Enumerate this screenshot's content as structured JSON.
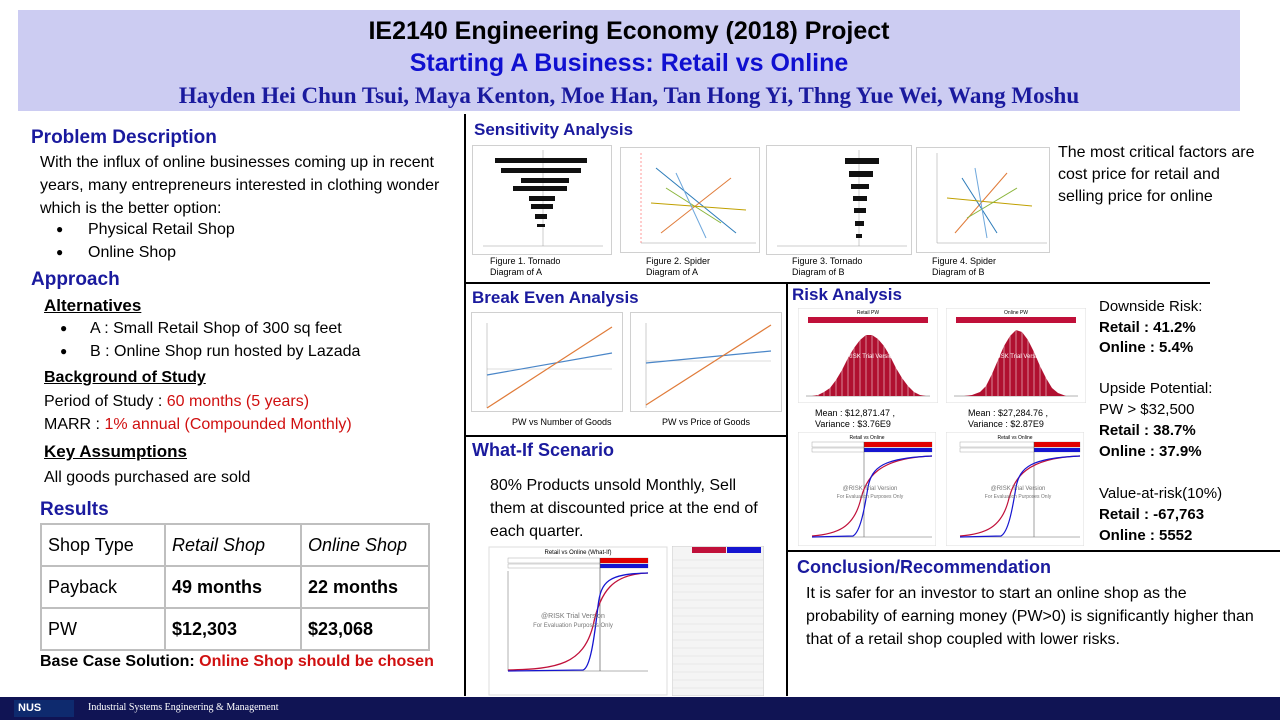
{
  "header": {
    "title": "IE2140 Engineering Economy (2018) Project",
    "subtitle": "Starting A Business: Retail vs Online",
    "authors": "Hayden Hei Chun Tsui, Maya Kenton, Moe Han, Tan Hong Yi, Thng Yue Wei, Wang Moshu"
  },
  "problem": {
    "heading": "Problem Description",
    "text": "With the influx of online businesses coming up in recent years, many entrepreneurs interested in clothing wonder which is the better option:",
    "options": [
      "Physical Retail Shop",
      "Online Shop"
    ]
  },
  "approach": {
    "heading": "Approach",
    "alternatives_heading": "Alternatives",
    "alternatives": [
      "A : Small Retail Shop of 300 sq feet",
      "B : Online Shop run hosted by Lazada"
    ],
    "background_heading": "Background of Study",
    "period_label": "Period of Study : ",
    "period_value": "60 months (5 years)",
    "marr_label": "MARR : ",
    "marr_value": "1% annual (Compounded Monthly)",
    "assumptions_heading": "Key Assumptions",
    "assumptions_text": "All goods purchased are sold"
  },
  "results": {
    "heading": "Results",
    "header_row": [
      "Shop Type",
      "Retail Shop",
      "Online Shop"
    ],
    "rows": [
      [
        "Payback",
        "49 months",
        "22 months"
      ],
      [
        "PW",
        "$12,303",
        "$23,068"
      ]
    ],
    "base_label": "Base Case Solution: ",
    "base_value": "Online Shop should be chosen"
  },
  "sensitivity": {
    "heading": "Sensitivity Analysis",
    "captions": [
      "Figure 1. Tornado Diagram of A",
      "Figure 2. Spider Diagram of A",
      "Figure 3. Tornado Diagram of B",
      "Figure 4. Spider Diagram of B"
    ],
    "note": "The most critical factors are cost price for retail and selling price for online"
  },
  "breakeven": {
    "heading": "Break Even Analysis",
    "captions": [
      "PW vs Number of Goods",
      "PW  vs Price of Goods"
    ]
  },
  "whatif": {
    "heading": "What-If Scenario",
    "text": "80% Products unsold Monthly, Sell them at discounted price at the end of each quarter.",
    "chart_title": "Retail vs Online (What-If)",
    "watermark_1": "@RISK Trial Version",
    "watermark_2": "For Evaluation Purposes Only"
  },
  "risk": {
    "heading": "Risk Analysis",
    "retail_chart_title": "Retail PW",
    "online_chart_title": "Online PW",
    "retail_stats_1": "Mean : $12,871.47  ,",
    "retail_stats_2": "Variance : $3.76E9",
    "online_stats_1": "Mean : $27,284.76  ,",
    "online_stats_2": "Variance : $2.87E9",
    "cdf_title": "Retail vs Online",
    "watermark_1": "@RISK Trial Version",
    "watermark_2": "For Evaluation Purposes Only",
    "downside_label": "Downside  Risk:",
    "downside_retail": "Retail  : 41.2%",
    "downside_online": "Online  : 5.4%",
    "upside_label": "Upside  Potential:",
    "upside_cond": "PW > $32,500",
    "upside_retail": "Retail  : 38.7%",
    "upside_online": "Online  : 37.9%",
    "var_label": "Value-at-risk(10%)",
    "var_retail": "Retail  : -67,763",
    "var_online": "Online  : 5552"
  },
  "conclusion": {
    "heading": "Conclusion/Recommendation",
    "text": "It is safer for an investor to start an online shop as the probability of earning money (PW>0) is significantly higher than that of a retail shop coupled with lower risks."
  },
  "footer": {
    "logo": "NUS",
    "department": "Industrial Systems Engineering & Management"
  },
  "colors": {
    "header_bg": "#ccccf2",
    "heading_blue": "#1a1a9e",
    "subtitle_blue": "#1010d0",
    "accent_red": "#d01010",
    "histogram_red": "#b01030",
    "footer_bg": "#101454"
  }
}
